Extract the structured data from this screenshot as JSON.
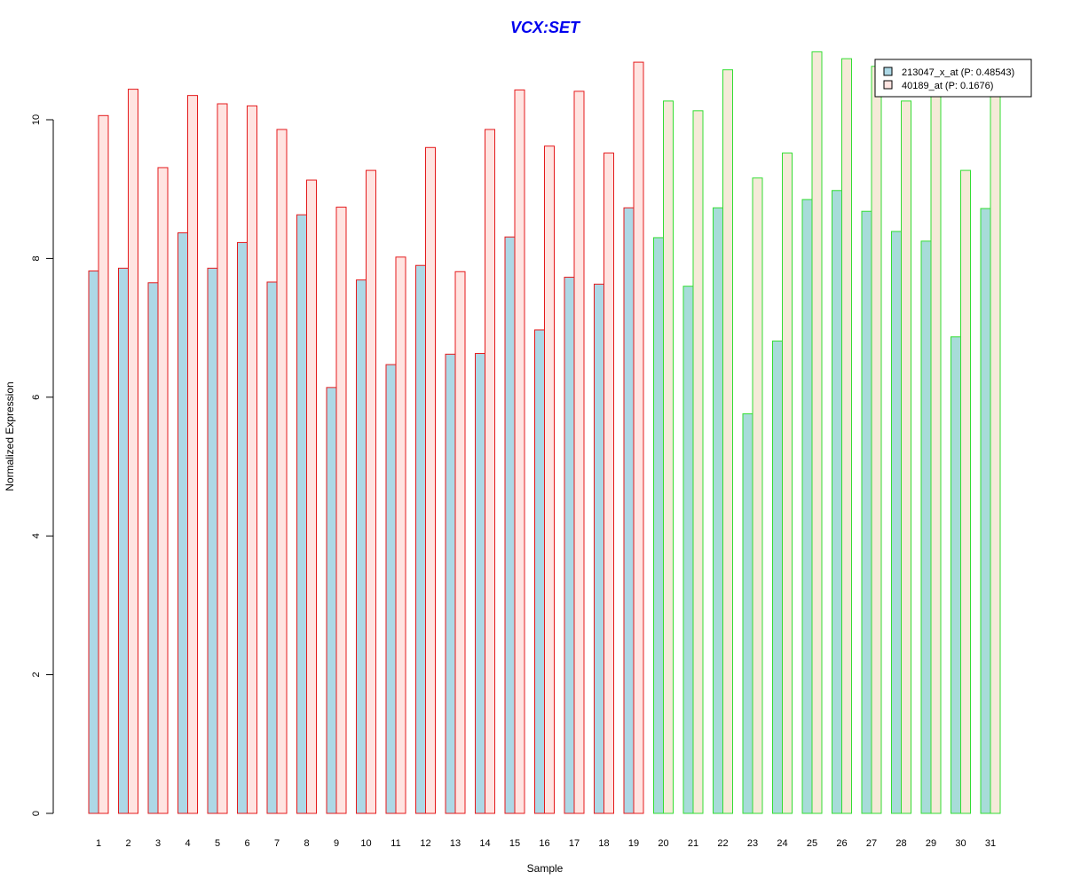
{
  "chart_data": {
    "type": "bar",
    "title": "VCX:SET",
    "xlabel": "Sample",
    "ylabel": "Normalized Expression",
    "ylim": [
      0,
      11
    ],
    "yticks": [
      0,
      2,
      4,
      6,
      8,
      10
    ],
    "categories": [
      "1",
      "2",
      "3",
      "4",
      "5",
      "6",
      "7",
      "8",
      "9",
      "10",
      "11",
      "12",
      "13",
      "14",
      "15",
      "16",
      "17",
      "18",
      "19",
      "20",
      "21",
      "22",
      "23",
      "24",
      "25",
      "26",
      "27",
      "28",
      "29",
      "30",
      "31"
    ],
    "series": [
      {
        "name": "213047_x_at (P: 0.48543)",
        "values": [
          7.82,
          7.86,
          7.65,
          8.37,
          7.86,
          8.23,
          7.66,
          8.63,
          6.14,
          7.69,
          6.47,
          7.9,
          6.62,
          6.63,
          8.31,
          6.97,
          7.73,
          7.63,
          8.73,
          8.3,
          7.6,
          8.73,
          5.76,
          6.81,
          8.85,
          8.98,
          8.68,
          8.39,
          8.25,
          6.87,
          8.72
        ]
      },
      {
        "name": "40189_at (P: 0.1676)",
        "values": [
          10.06,
          10.44,
          9.31,
          10.35,
          10.23,
          10.2,
          9.86,
          9.13,
          8.74,
          9.27,
          8.02,
          9.6,
          7.81,
          9.86,
          10.43,
          9.62,
          10.41,
          9.52,
          10.83,
          10.27,
          10.13,
          10.72,
          9.16,
          9.52,
          10.98,
          10.88,
          10.77,
          10.27,
          10.39,
          9.27,
          10.37
        ]
      }
    ],
    "groups": [
      {
        "from": 1,
        "to": 19,
        "border_color": "#e41a1c",
        "fills": [
          "#add8e6",
          "#ffe4e1"
        ]
      },
      {
        "from": 20,
        "to": 31,
        "border_color": "#33dd33",
        "fills": [
          "#a7dcd9",
          "#f5ead8"
        ]
      }
    ],
    "title_color": "#0000ee",
    "legend_position": "top-right",
    "legend_fills": [
      "#add8e6",
      "#ffe4e1"
    ],
    "grid": false
  }
}
